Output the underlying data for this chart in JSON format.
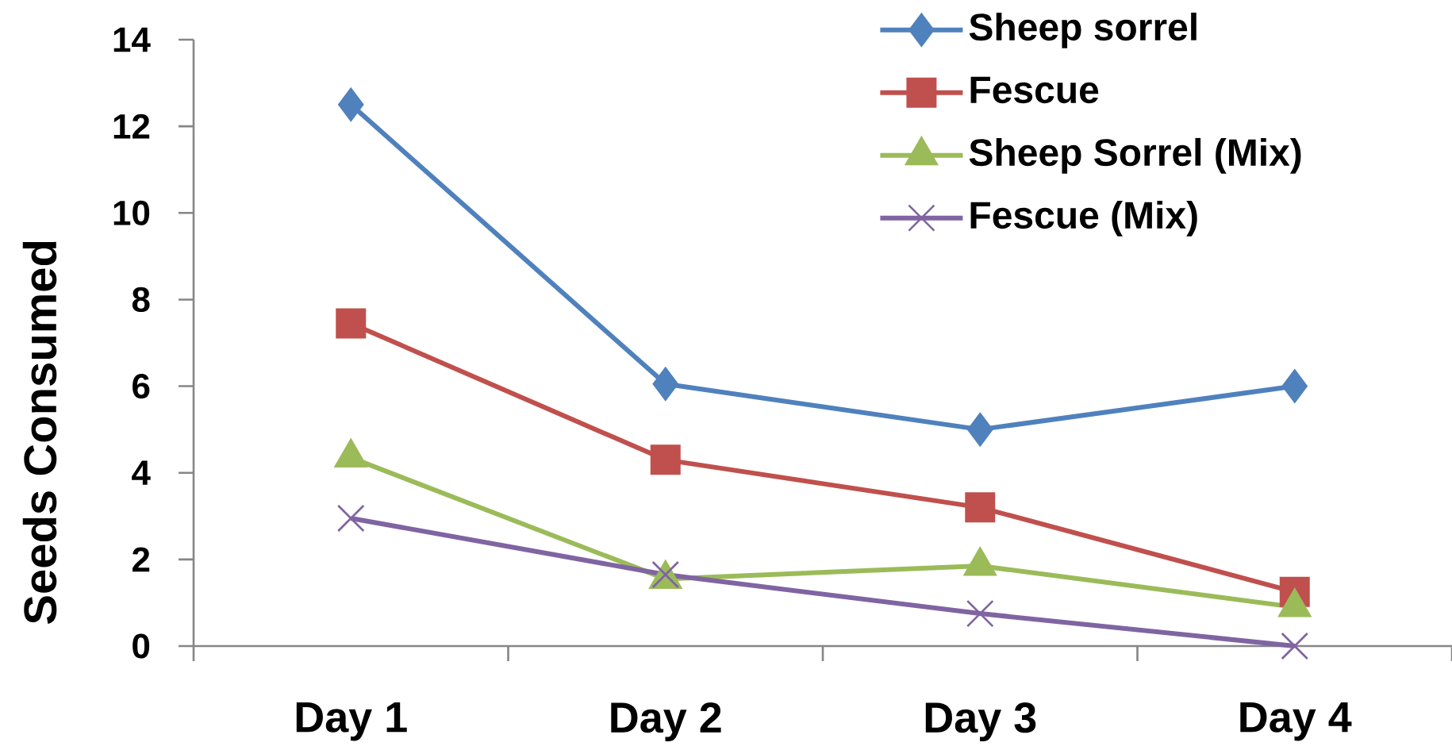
{
  "chart_data": {
    "type": "line",
    "ylabel": "Seeds Consumed",
    "categories": [
      "Day 1",
      "Day 2",
      "Day 3",
      "Day 4"
    ],
    "ylim": [
      0,
      14
    ],
    "yticks": [
      0,
      2,
      4,
      6,
      8,
      10,
      12,
      14
    ],
    "legend": "top right",
    "line_style": "solid",
    "series": [
      {
        "name": "Sheep sorrel",
        "color": "#4f81bd",
        "marker": "diamond",
        "values": [
          12.5,
          6.05,
          5.0,
          6.0
        ]
      },
      {
        "name": "Fescue",
        "color": "#c0504d",
        "marker": "square",
        "values": [
          7.45,
          4.3,
          3.2,
          1.25
        ]
      },
      {
        "name": "Sheep Sorrel (Mix)",
        "color": "#9bbb59",
        "marker": "triangle",
        "values": [
          4.35,
          1.55,
          1.85,
          0.9
        ]
      },
      {
        "name": "Fescue (Mix)",
        "color": "#8064a2",
        "marker": "cross",
        "values": [
          2.95,
          1.65,
          0.75,
          0.0
        ]
      }
    ]
  }
}
